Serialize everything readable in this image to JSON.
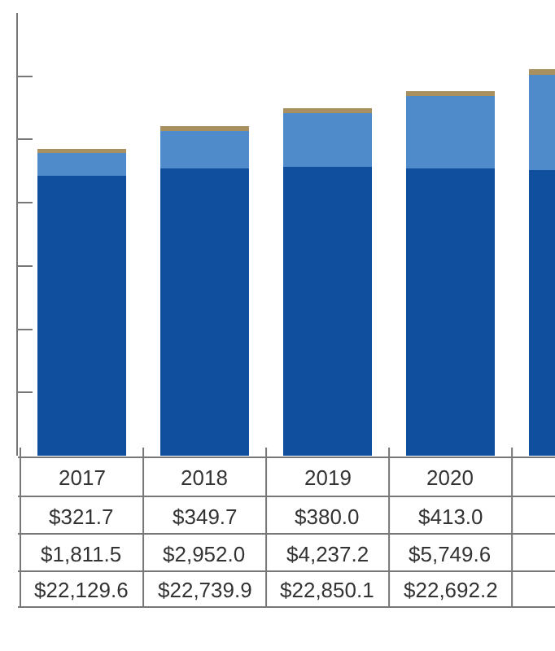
{
  "chart_data": {
    "type": "bar",
    "stacked": true,
    "categories": [
      "2017",
      "2018",
      "2019",
      "2020",
      null
    ],
    "series": [
      {
        "color": "#0f4f9e",
        "values": [
          22129.6,
          22739.9,
          22850.1,
          22692.2,
          22600
        ],
        "value_labels": [
          "$22,129.6",
          "$22,739.9",
          "$22,850.1",
          "$22,692.2",
          null
        ]
      },
      {
        "color": "#4f8acb",
        "values": [
          1811.5,
          2952.0,
          4237.2,
          5749.6,
          7500
        ],
        "value_labels": [
          "$1,811.5",
          "$2,952.0",
          "$4,237.2",
          "$5,749.6",
          null
        ]
      },
      {
        "color": "#a89060",
        "values": [
          321.7,
          349.7,
          380.0,
          413.0,
          450
        ],
        "value_labels": [
          "$321.7",
          "$349.7",
          "$380.0",
          "$413.0",
          null
        ]
      }
    ],
    "ylim": [
      0,
      35000
    ],
    "yticks": [
      {
        "value": 0,
        "label": null
      },
      {
        "value": 5000,
        "label": null
      },
      {
        "value": 10000,
        "label": null
      },
      {
        "value": 15000,
        "label": null
      },
      {
        "value": 20000,
        "label": null
      },
      {
        "value": 25000,
        "label": null
      },
      {
        "value": 30000,
        "label": null
      }
    ],
    "tick_labels": "x"
  }
}
